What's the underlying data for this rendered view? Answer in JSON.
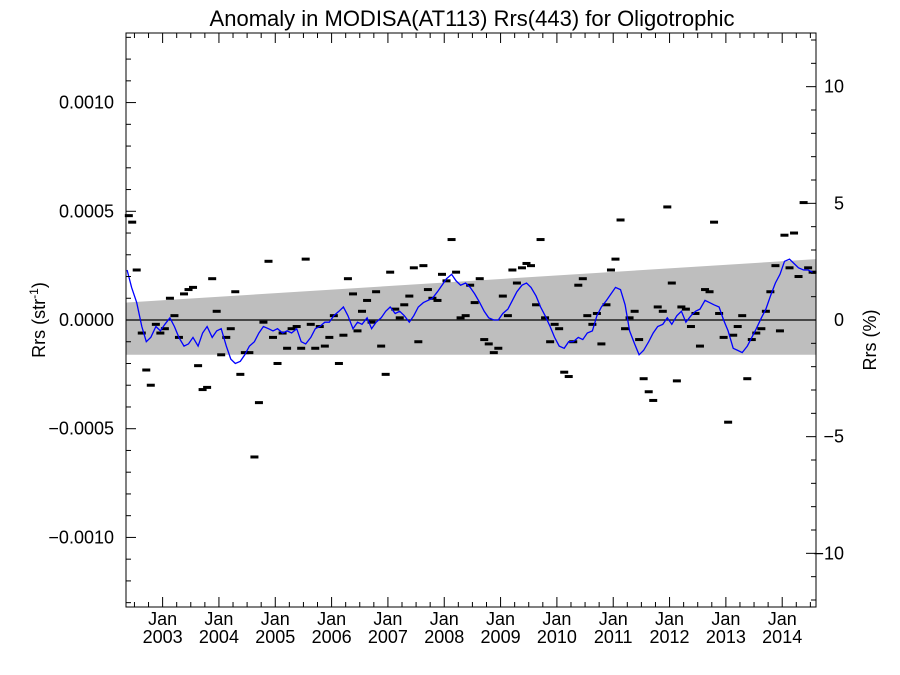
{
  "chart_data": {
    "type": "scatter",
    "title": "Anomaly in MODISA(AT113) Rrs(443) for Oligotrophic",
    "ylabel_left": "Rrs (str",
    "ylabel_left_sup": "-1",
    "ylabel_left_close": ")",
    "ylabel_right": "Rrs (%)",
    "xlim": [
      2002.35,
      2014.6
    ],
    "ylim_left": [
      -0.00132,
      0.00132
    ],
    "ylim_right": [
      -12.3,
      12.3
    ],
    "left_ticks": [
      {
        "value": 0.001,
        "label": "0.0010"
      },
      {
        "value": 0.0005,
        "label": "0.0005"
      },
      {
        "value": 0.0,
        "label": "0.0000"
      },
      {
        "value": -0.0005,
        "label": "−0.0005"
      },
      {
        "value": -0.001,
        "label": "−0.0010"
      }
    ],
    "right_ticks": [
      {
        "value": 10,
        "label": "10"
      },
      {
        "value": 5,
        "label": "5"
      },
      {
        "value": 0,
        "label": "0"
      },
      {
        "value": -5,
        "label": "−5"
      },
      {
        "value": -10,
        "label": "−10"
      }
    ],
    "x_ticks": [
      {
        "value": 2003.0,
        "month": "Jan",
        "year": "2003"
      },
      {
        "value": 2004.0,
        "month": "Jan",
        "year": "2004"
      },
      {
        "value": 2005.0,
        "month": "Jan",
        "year": "2005"
      },
      {
        "value": 2006.0,
        "month": "Jan",
        "year": "2006"
      },
      {
        "value": 2007.0,
        "month": "Jan",
        "year": "2007"
      },
      {
        "value": 2008.0,
        "month": "Jan",
        "year": "2008"
      },
      {
        "value": 2009.0,
        "month": "Jan",
        "year": "2009"
      },
      {
        "value": 2010.0,
        "month": "Jan",
        "year": "2010"
      },
      {
        "value": 2011.0,
        "month": "Jan",
        "year": "2011"
      },
      {
        "value": 2012.0,
        "month": "Jan",
        "year": "2012"
      },
      {
        "value": 2013.0,
        "month": "Jan",
        "year": "2013"
      },
      {
        "value": 2014.0,
        "month": "Jan",
        "year": "2014"
      }
    ],
    "band": {
      "x": [
        2002.35,
        2014.6
      ],
      "upper": [
        8e-05,
        0.00028
      ],
      "lower": [
        -0.00016,
        -0.00016
      ],
      "color": "#bebebe"
    },
    "zero_line": 0,
    "scatter": {
      "color": "#000000",
      "points": [
        [
          2002.4,
          0.00048
        ],
        [
          2002.46,
          0.00045
        ],
        [
          2002.54,
          0.00023
        ],
        [
          2002.63,
          -6e-05
        ],
        [
          2002.71,
          -0.00023
        ],
        [
          2002.79,
          -0.0003
        ],
        [
          2002.88,
          -2e-05
        ],
        [
          2002.96,
          -6e-05
        ],
        [
          2003.04,
          -4e-05
        ],
        [
          2003.13,
          0.0001
        ],
        [
          2003.21,
          2e-05
        ],
        [
          2003.29,
          -8e-05
        ],
        [
          2003.38,
          0.00012
        ],
        [
          2003.46,
          0.00014
        ],
        [
          2003.54,
          0.00015
        ],
        [
          2003.63,
          -0.00021
        ],
        [
          2003.71,
          -0.00032
        ],
        [
          2003.79,
          -0.00031
        ],
        [
          2003.88,
          0.00019
        ],
        [
          2003.96,
          4e-05
        ],
        [
          2004.04,
          -0.00016
        ],
        [
          2004.13,
          -8e-05
        ],
        [
          2004.21,
          -4e-05
        ],
        [
          2004.29,
          0.00013
        ],
        [
          2004.38,
          -0.00025
        ],
        [
          2004.46,
          -0.00015
        ],
        [
          2004.54,
          -0.00015
        ],
        [
          2004.63,
          -0.00063
        ],
        [
          2004.71,
          -0.00038
        ],
        [
          2004.79,
          -1e-05
        ],
        [
          2004.88,
          0.00027
        ],
        [
          2004.96,
          -8e-05
        ],
        [
          2005.04,
          -0.0002
        ],
        [
          2005.13,
          -6e-05
        ],
        [
          2005.21,
          -0.00013
        ],
        [
          2005.29,
          -4e-05
        ],
        [
          2005.38,
          -3e-05
        ],
        [
          2005.46,
          -0.00013
        ],
        [
          2005.54,
          0.00028
        ],
        [
          2005.63,
          -2e-05
        ],
        [
          2005.71,
          -0.00013
        ],
        [
          2005.79,
          -3e-05
        ],
        [
          2005.88,
          -0.00012
        ],
        [
          2005.96,
          -8e-05
        ],
        [
          2006.04,
          2e-05
        ],
        [
          2006.13,
          -0.0002
        ],
        [
          2006.21,
          -7e-05
        ],
        [
          2006.29,
          0.00019
        ],
        [
          2006.38,
          0.00012
        ],
        [
          2006.46,
          -5e-05
        ],
        [
          2006.54,
          4e-05
        ],
        [
          2006.63,
          9e-05
        ],
        [
          2006.71,
          -1e-05
        ],
        [
          2006.79,
          0.00013
        ],
        [
          2006.88,
          -0.00012
        ],
        [
          2006.96,
          -0.00025
        ],
        [
          2007.04,
          0.00022
        ],
        [
          2007.13,
          5e-05
        ],
        [
          2007.21,
          1e-05
        ],
        [
          2007.29,
          7e-05
        ],
        [
          2007.38,
          0.00011
        ],
        [
          2007.46,
          0.00024
        ],
        [
          2007.54,
          -0.0001
        ],
        [
          2007.63,
          0.00025
        ],
        [
          2007.71,
          0.00014
        ],
        [
          2007.79,
          0.0001
        ],
        [
          2007.88,
          9e-05
        ],
        [
          2007.96,
          0.00021
        ],
        [
          2008.04,
          0.00018
        ],
        [
          2008.13,
          0.00037
        ],
        [
          2008.21,
          0.00022
        ],
        [
          2008.29,
          1e-05
        ],
        [
          2008.38,
          2e-05
        ],
        [
          2008.46,
          0.00016
        ],
        [
          2008.54,
          8e-05
        ],
        [
          2008.63,
          0.00019
        ],
        [
          2008.71,
          -9e-05
        ],
        [
          2008.79,
          -0.00011
        ],
        [
          2008.88,
          -0.00015
        ],
        [
          2008.96,
          -0.00013
        ],
        [
          2009.04,
          0.00011
        ],
        [
          2009.13,
          2e-05
        ],
        [
          2009.21,
          0.00023
        ],
        [
          2009.29,
          0.00017
        ],
        [
          2009.38,
          0.00024
        ],
        [
          2009.46,
          0.00026
        ],
        [
          2009.54,
          0.00025
        ],
        [
          2009.63,
          7e-05
        ],
        [
          2009.71,
          0.00037
        ],
        [
          2009.79,
          1e-05
        ],
        [
          2009.88,
          -0.0001
        ],
        [
          2009.96,
          -2e-05
        ],
        [
          2010.04,
          -4e-05
        ],
        [
          2010.13,
          -0.00024
        ],
        [
          2010.21,
          -0.00026
        ],
        [
          2010.29,
          -0.0001
        ],
        [
          2010.38,
          0.00016
        ],
        [
          2010.46,
          0.00019
        ],
        [
          2010.54,
          2e-05
        ],
        [
          2010.63,
          -2e-05
        ],
        [
          2010.71,
          3e-05
        ],
        [
          2010.79,
          -0.00011
        ],
        [
          2010.88,
          7e-05
        ],
        [
          2010.96,
          0.00023
        ],
        [
          2011.04,
          0.00028
        ],
        [
          2011.13,
          0.00046
        ],
        [
          2011.21,
          -4e-05
        ],
        [
          2011.29,
          1e-05
        ],
        [
          2011.38,
          4e-05
        ],
        [
          2011.46,
          -9e-05
        ],
        [
          2011.54,
          -0.00027
        ],
        [
          2011.63,
          -0.00033
        ],
        [
          2011.71,
          -0.00037
        ],
        [
          2011.79,
          6e-05
        ],
        [
          2011.88,
          4e-05
        ],
        [
          2011.96,
          0.00052
        ],
        [
          2012.04,
          0.00017
        ],
        [
          2012.13,
          -0.00028
        ],
        [
          2012.21,
          6e-05
        ],
        [
          2012.29,
          5e-05
        ],
        [
          2012.38,
          -3e-05
        ],
        [
          2012.46,
          3e-05
        ],
        [
          2012.54,
          -0.00012
        ],
        [
          2012.63,
          0.00014
        ],
        [
          2012.71,
          0.00013
        ],
        [
          2012.79,
          0.00045
        ],
        [
          2012.88,
          3e-05
        ],
        [
          2012.96,
          -8e-05
        ],
        [
          2013.04,
          -0.00047
        ],
        [
          2013.13,
          -7e-05
        ],
        [
          2013.21,
          -3e-05
        ],
        [
          2013.29,
          2e-05
        ],
        [
          2013.38,
          -0.00027
        ],
        [
          2013.46,
          -9e-05
        ],
        [
          2013.54,
          -6e-05
        ],
        [
          2013.63,
          -4e-05
        ],
        [
          2013.71,
          4e-05
        ],
        [
          2013.79,
          0.00013
        ],
        [
          2013.88,
          0.00025
        ],
        [
          2013.96,
          -5e-05
        ],
        [
          2014.04,
          0.00039
        ],
        [
          2014.13,
          0.00024
        ],
        [
          2014.21,
          0.0004
        ],
        [
          2014.29,
          0.0002
        ],
        [
          2014.38,
          0.00054
        ],
        [
          2014.46,
          0.00024
        ],
        [
          2014.54,
          0.00022
        ]
      ]
    },
    "line": {
      "color": "#0000ff",
      "points": [
        [
          2002.37,
          0.00023
        ],
        [
          2002.45,
          0.00015
        ],
        [
          2002.54,
          8e-05
        ],
        [
          2002.63,
          -3e-05
        ],
        [
          2002.71,
          -0.0001
        ],
        [
          2002.79,
          -8e-05
        ],
        [
          2002.88,
          -3e-05
        ],
        [
          2002.96,
          -5e-05
        ],
        [
          2003.04,
          -2e-05
        ],
        [
          2003.13,
          1e-05
        ],
        [
          2003.21,
          -3e-05
        ],
        [
          2003.29,
          -8e-05
        ],
        [
          2003.38,
          -0.00012
        ],
        [
          2003.46,
          -0.00011
        ],
        [
          2003.54,
          -8e-05
        ],
        [
          2003.63,
          -0.00012
        ],
        [
          2003.71,
          -6e-05
        ],
        [
          2003.79,
          -3e-05
        ],
        [
          2003.88,
          -8e-05
        ],
        [
          2003.96,
          -5e-05
        ],
        [
          2004.04,
          -4e-05
        ],
        [
          2004.13,
          -0.00012
        ],
        [
          2004.21,
          -0.00018
        ],
        [
          2004.29,
          -0.0002
        ],
        [
          2004.38,
          -0.00019
        ],
        [
          2004.46,
          -0.00016
        ],
        [
          2004.54,
          -0.00012
        ],
        [
          2004.63,
          -0.0001
        ],
        [
          2004.71,
          -6e-05
        ],
        [
          2004.79,
          -3e-05
        ],
        [
          2004.88,
          -4e-05
        ],
        [
          2004.96,
          -5e-05
        ],
        [
          2005.04,
          -4e-05
        ],
        [
          2005.13,
          -6e-05
        ],
        [
          2005.21,
          -5e-05
        ],
        [
          2005.29,
          -6e-05
        ],
        [
          2005.38,
          -4e-05
        ],
        [
          2005.46,
          -0.0001
        ],
        [
          2005.54,
          -0.00011
        ],
        [
          2005.63,
          -8e-05
        ],
        [
          2005.71,
          -4e-05
        ],
        [
          2005.79,
          -3e-05
        ],
        [
          2005.88,
          -1e-05
        ],
        [
          2005.96,
          -1e-05
        ],
        [
          2006.04,
          2e-05
        ],
        [
          2006.13,
          4e-05
        ],
        [
          2006.21,
          6e-05
        ],
        [
          2006.29,
          2e-05
        ],
        [
          2006.38,
          -4e-05
        ],
        [
          2006.46,
          -1e-05
        ],
        [
          2006.54,
          -2e-05
        ],
        [
          2006.63,
          1e-05
        ],
        [
          2006.71,
          -4e-05
        ],
        [
          2006.79,
          -1e-05
        ],
        [
          2006.88,
          1e-05
        ],
        [
          2006.96,
          4e-05
        ],
        [
          2007.04,
          6e-05
        ],
        [
          2007.13,
          3e-05
        ],
        [
          2007.21,
          4e-05
        ],
        [
          2007.29,
          2e-05
        ],
        [
          2007.38,
          -1e-05
        ],
        [
          2007.46,
          2e-05
        ],
        [
          2007.54,
          6e-05
        ],
        [
          2007.63,
          8e-05
        ],
        [
          2007.71,
          9e-05
        ],
        [
          2007.79,
          0.0001
        ],
        [
          2007.88,
          0.00013
        ],
        [
          2007.96,
          0.00016
        ],
        [
          2008.04,
          0.00019
        ],
        [
          2008.13,
          0.00021
        ],
        [
          2008.21,
          0.00018
        ],
        [
          2008.29,
          0.00016
        ],
        [
          2008.38,
          0.00017
        ],
        [
          2008.46,
          0.00015
        ],
        [
          2008.54,
          0.00012
        ],
        [
          2008.63,
          8e-05
        ],
        [
          2008.71,
          4e-05
        ],
        [
          2008.79,
          1e-05
        ],
        [
          2008.88,
          0.0
        ],
        [
          2008.96,
          0.0
        ],
        [
          2009.04,
          3e-05
        ],
        [
          2009.13,
          5e-05
        ],
        [
          2009.21,
          9e-05
        ],
        [
          2009.29,
          0.00013
        ],
        [
          2009.38,
          0.00016
        ],
        [
          2009.46,
          0.00017
        ],
        [
          2009.54,
          0.00015
        ],
        [
          2009.63,
          0.00011
        ],
        [
          2009.71,
          6e-05
        ],
        [
          2009.79,
          2e-05
        ],
        [
          2009.88,
          -3e-05
        ],
        [
          2009.96,
          -8e-05
        ],
        [
          2010.04,
          -0.00012
        ],
        [
          2010.13,
          -0.00013
        ],
        [
          2010.21,
          -0.0001
        ],
        [
          2010.29,
          -0.0001
        ],
        [
          2010.38,
          -8e-05
        ],
        [
          2010.46,
          -9e-05
        ],
        [
          2010.54,
          -6e-05
        ],
        [
          2010.63,
          -5e-05
        ],
        [
          2010.71,
          2e-05
        ],
        [
          2010.79,
          6e-05
        ],
        [
          2010.88,
          9e-05
        ],
        [
          2010.96,
          0.00012
        ],
        [
          2011.04,
          0.00015
        ],
        [
          2011.13,
          0.00014
        ],
        [
          2011.21,
          7e-05
        ],
        [
          2011.29,
          -5e-05
        ],
        [
          2011.38,
          -0.00011
        ],
        [
          2011.46,
          -0.00016
        ],
        [
          2011.54,
          -0.00014
        ],
        [
          2011.63,
          -0.0001
        ],
        [
          2011.71,
          -6e-05
        ],
        [
          2011.79,
          -3e-05
        ],
        [
          2011.88,
          -2e-05
        ],
        [
          2011.96,
          1e-05
        ],
        [
          2012.04,
          -2e-05
        ],
        [
          2012.13,
          2e-05
        ],
        [
          2012.21,
          4e-05
        ],
        [
          2012.29,
          -1e-05
        ],
        [
          2012.38,
          2e-05
        ],
        [
          2012.46,
          4e-05
        ],
        [
          2012.54,
          5e-05
        ],
        [
          2012.63,
          9e-05
        ],
        [
          2012.71,
          8e-05
        ],
        [
          2012.79,
          7e-05
        ],
        [
          2012.88,
          6e-05
        ],
        [
          2012.96,
          0.0
        ],
        [
          2013.04,
          -5e-05
        ],
        [
          2013.13,
          -0.00013
        ],
        [
          2013.21,
          -0.00014
        ],
        [
          2013.29,
          -0.00015
        ],
        [
          2013.38,
          -0.00012
        ],
        [
          2013.46,
          -8e-05
        ],
        [
          2013.54,
          -4e-05
        ],
        [
          2013.63,
          1e-05
        ],
        [
          2013.71,
          5e-05
        ],
        [
          2013.79,
          0.00011
        ],
        [
          2013.88,
          0.00017
        ],
        [
          2013.96,
          0.00021
        ],
        [
          2014.04,
          0.00027
        ],
        [
          2014.13,
          0.00028
        ],
        [
          2014.21,
          0.00026
        ],
        [
          2014.29,
          0.00024
        ],
        [
          2014.38,
          0.00023
        ],
        [
          2014.46,
          0.00023
        ],
        [
          2014.54,
          0.00022
        ]
      ]
    }
  }
}
